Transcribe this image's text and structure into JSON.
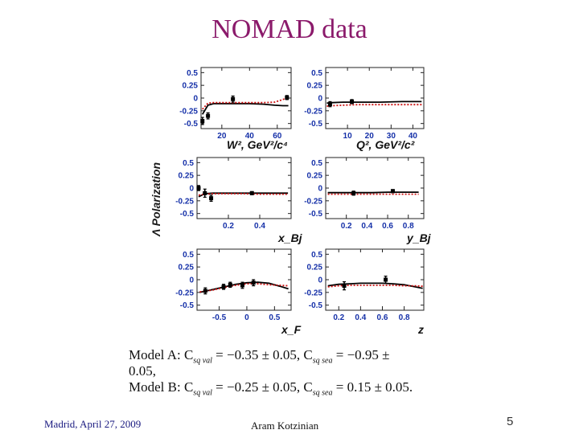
{
  "slide": {
    "title": "NOMAD data",
    "y_axis_label": "Λ Polarization",
    "model_line1": "Model A: C",
    "model_line1_sub1": "sq val",
    "model_line1_mid": " = −0.35 ± 0.05, C",
    "model_line1_sub2": "sq sea",
    "model_line1_end": " = −0.95 ±",
    "model_line2": "0.05,",
    "model_line3": "Model B: C",
    "model_line3_sub1": "sq val",
    "model_line3_mid": " = −0.25 ± 0.05, C",
    "model_line3_sub2": "sq sea",
    "model_line3_end": " = 0.15 ± 0.05.",
    "footer_left": "Madrid, April 27,  2009",
    "footer_center": "Aram Kotzinian",
    "page_number": "5"
  },
  "colors": {
    "title": "#8b1a6b",
    "tick_labels": "#1530a8",
    "model_a_line": "#000000",
    "model_b_line": "#cc1111",
    "data_points": "#000000"
  },
  "chart_data": [
    {
      "type": "line",
      "panel": "W2",
      "xlabel": "W², GeV²/c⁴",
      "xlim": [
        5,
        70
      ],
      "ylim": [
        -0.6,
        0.6
      ],
      "yticks": [
        "0.5",
        "0.25",
        "0",
        "-0.25",
        "-0.5"
      ],
      "xticks": [
        20,
        40,
        60
      ],
      "points": [
        {
          "x": 6,
          "y": -0.45,
          "err": 0.07
        },
        {
          "x": 10,
          "y": -0.35,
          "err": 0.06
        },
        {
          "x": 28,
          "y": -0.02,
          "err": 0.06
        },
        {
          "x": 67,
          "y": 0.01,
          "err": 0.04
        }
      ],
      "series": [
        {
          "name": "Model A",
          "x": [
            6,
            10,
            14,
            20,
            30,
            40,
            50,
            58,
            64,
            68
          ],
          "y": [
            -0.32,
            -0.14,
            -0.11,
            -0.11,
            -0.11,
            -0.11,
            -0.12,
            -0.14,
            -0.15,
            -0.15
          ]
        },
        {
          "name": "Model B",
          "x": [
            6,
            10,
            14,
            20,
            30,
            40,
            50,
            58,
            64,
            68
          ],
          "y": [
            -0.22,
            -0.1,
            -0.09,
            -0.09,
            -0.09,
            -0.09,
            -0.09,
            -0.08,
            -0.03,
            0.02
          ]
        }
      ]
    },
    {
      "type": "line",
      "panel": "Q2",
      "xlabel": "Q², GeV²/c²",
      "xlim": [
        0,
        45
      ],
      "ylim": [
        -0.6,
        0.6
      ],
      "yticks": [
        "0.5",
        "0.25",
        "0",
        "-0.25",
        "-0.5"
      ],
      "xticks": [
        10,
        20,
        30,
        40
      ],
      "points": [
        {
          "x": 2,
          "y": -0.12,
          "err": 0.05
        },
        {
          "x": 12,
          "y": -0.07,
          "err": 0.04
        }
      ],
      "series": [
        {
          "name": "Model A",
          "x": [
            0.5,
            3,
            8,
            15,
            25,
            35,
            44
          ],
          "y": [
            -0.1,
            -0.09,
            -0.08,
            -0.08,
            -0.08,
            -0.07,
            -0.07
          ]
        },
        {
          "name": "Model B",
          "x": [
            0.5,
            3,
            8,
            15,
            25,
            35,
            44
          ],
          "y": [
            -0.16,
            -0.15,
            -0.14,
            -0.13,
            -0.13,
            -0.13,
            -0.13
          ]
        }
      ]
    },
    {
      "type": "line",
      "panel": "xBj",
      "xlabel": "x_Bj",
      "xlim": [
        0,
        0.6
      ],
      "ylim": [
        -0.6,
        0.6
      ],
      "yticks": [
        "0.5",
        "0.25",
        "0",
        "-0.25",
        "-0.5"
      ],
      "xticks": [
        0.2,
        0.4
      ],
      "points": [
        {
          "x": 0.01,
          "y": 0.0,
          "err": 0.05
        },
        {
          "x": 0.05,
          "y": -0.1,
          "err": 0.08
        },
        {
          "x": 0.09,
          "y": -0.2,
          "err": 0.06
        },
        {
          "x": 0.35,
          "y": -0.1,
          "err": 0.03
        }
      ],
      "series": [
        {
          "name": "Model A",
          "x": [
            0.01,
            0.05,
            0.1,
            0.2,
            0.3,
            0.4,
            0.5,
            0.58
          ],
          "y": [
            -0.17,
            -0.11,
            -0.1,
            -0.1,
            -0.1,
            -0.1,
            -0.1,
            -0.1
          ]
        },
        {
          "name": "Model B",
          "x": [
            0.01,
            0.05,
            0.1,
            0.2,
            0.3,
            0.4,
            0.5,
            0.58
          ],
          "y": [
            -0.14,
            -0.12,
            -0.11,
            -0.11,
            -0.11,
            -0.12,
            -0.12,
            -0.12
          ]
        }
      ]
    },
    {
      "type": "line",
      "panel": "yBj",
      "xlabel": "y_Bj",
      "xlim": [
        0,
        0.95
      ],
      "ylim": [
        -0.6,
        0.6
      ],
      "yticks": [
        "0.5",
        "0.25",
        "0",
        "-0.25",
        "-0.5"
      ],
      "xticks": [
        0.2,
        0.4,
        0.6,
        0.8
      ],
      "points": [
        {
          "x": 0.27,
          "y": -0.1,
          "err": 0.04
        },
        {
          "x": 0.65,
          "y": -0.06,
          "err": 0.03
        }
      ],
      "series": [
        {
          "name": "Model A",
          "x": [
            0.02,
            0.15,
            0.3,
            0.45,
            0.6,
            0.75,
            0.9
          ],
          "y": [
            -0.09,
            -0.09,
            -0.09,
            -0.09,
            -0.08,
            -0.08,
            -0.08
          ]
        },
        {
          "name": "Model B",
          "x": [
            0.02,
            0.15,
            0.3,
            0.45,
            0.6,
            0.75,
            0.9
          ],
          "y": [
            -0.12,
            -0.12,
            -0.12,
            -0.12,
            -0.12,
            -0.12,
            -0.12
          ]
        }
      ]
    },
    {
      "type": "line",
      "panel": "xF",
      "xlabel": "x_F",
      "xlim": [
        -0.9,
        0.8
      ],
      "ylim": [
        -0.6,
        0.6
      ],
      "yticks": [
        "0.5",
        "0.25",
        "0",
        "-0.25",
        "-0.5"
      ],
      "xticks": [
        -0.5,
        0,
        0.5
      ],
      "points": [
        {
          "x": -0.75,
          "y": -0.22,
          "err": 0.06
        },
        {
          "x": -0.42,
          "y": -0.14,
          "err": 0.05
        },
        {
          "x": -0.3,
          "y": -0.1,
          "err": 0.05
        },
        {
          "x": -0.08,
          "y": -0.11,
          "err": 0.06
        },
        {
          "x": 0.12,
          "y": -0.06,
          "err": 0.06
        }
      ],
      "series": [
        {
          "name": "Model A",
          "x": [
            -0.85,
            -0.6,
            -0.4,
            -0.2,
            0.0,
            0.2,
            0.4,
            0.6,
            0.75
          ],
          "y": [
            -0.25,
            -0.19,
            -0.14,
            -0.09,
            -0.06,
            -0.05,
            -0.07,
            -0.13,
            -0.18
          ]
        },
        {
          "name": "Model B",
          "x": [
            -0.85,
            -0.6,
            -0.4,
            -0.2,
            0.0,
            0.2,
            0.4,
            0.6,
            0.75
          ],
          "y": [
            -0.24,
            -0.2,
            -0.15,
            -0.11,
            -0.08,
            -0.08,
            -0.1,
            -0.11,
            -0.12
          ]
        }
      ]
    },
    {
      "type": "line",
      "panel": "z",
      "xlabel": "z",
      "xlim": [
        0.08,
        0.98
      ],
      "ylim": [
        -0.6,
        0.6
      ],
      "yticks": [
        "0.5",
        "0.25",
        "0",
        "-0.25",
        "-0.5"
      ],
      "xticks": [
        0.2,
        0.4,
        0.6,
        0.8
      ],
      "points": [
        {
          "x": 0.25,
          "y": -0.12,
          "err": 0.08
        },
        {
          "x": 0.63,
          "y": 0.0,
          "err": 0.07
        }
      ],
      "series": [
        {
          "name": "Model A",
          "x": [
            0.1,
            0.2,
            0.3,
            0.4,
            0.5,
            0.6,
            0.7,
            0.8,
            0.9,
            0.97
          ],
          "y": [
            -0.12,
            -0.09,
            -0.08,
            -0.07,
            -0.07,
            -0.07,
            -0.08,
            -0.1,
            -0.14,
            -0.17
          ]
        },
        {
          "name": "Model B",
          "x": [
            0.1,
            0.2,
            0.3,
            0.4,
            0.5,
            0.6,
            0.7,
            0.8,
            0.9,
            0.97
          ],
          "y": [
            -0.14,
            -0.12,
            -0.11,
            -0.11,
            -0.11,
            -0.11,
            -0.11,
            -0.12,
            -0.12,
            -0.13
          ]
        }
      ]
    }
  ]
}
